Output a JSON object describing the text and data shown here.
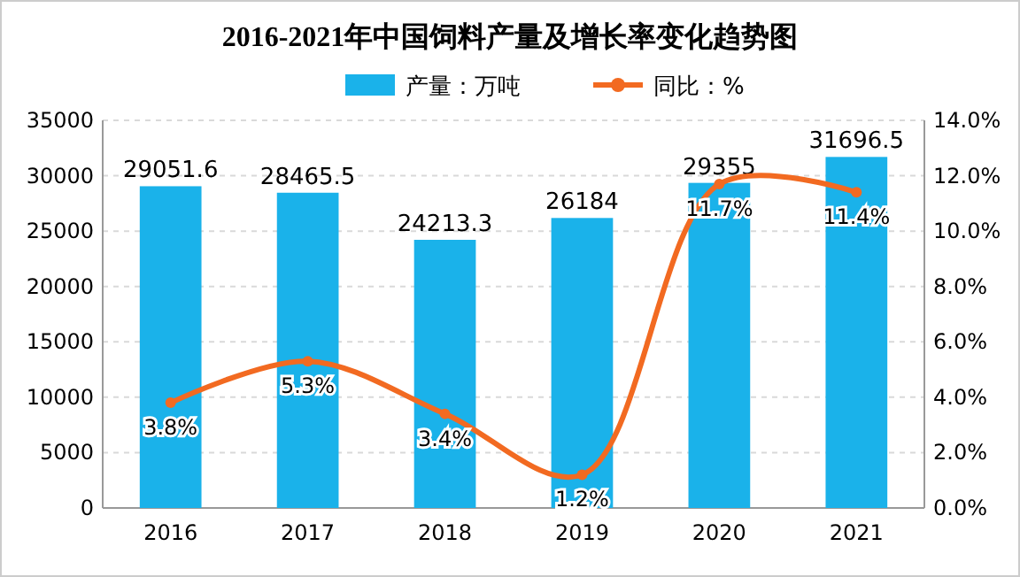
{
  "chart_data": {
    "type": "bar",
    "title": "2016-2021年中国饲料产量及增长率变化趋势图",
    "categories": [
      "2016",
      "2017",
      "2018",
      "2019",
      "2020",
      "2021"
    ],
    "series": [
      {
        "name": "产量：万吨",
        "color": "#1ab2ea",
        "values": [
          29051.6,
          28465.5,
          24213.3,
          26184,
          29355,
          31696.5
        ]
      },
      {
        "name": "同比：%",
        "type": "line",
        "axis": "y2",
        "color": "#f26a21",
        "marker": "circle",
        "values": [
          3.8,
          5.3,
          3.4,
          1.2,
          11.7,
          11.4
        ],
        "value_labels": [
          "3.8%",
          "5.3%",
          "3.4%",
          "1.2%",
          "11.7%",
          "11.4%"
        ]
      }
    ],
    "data_labels": true,
    "ylim": [
      0,
      35000
    ],
    "yticks": [
      0,
      5000,
      10000,
      15000,
      20000,
      25000,
      30000,
      35000
    ],
    "y2lim": [
      0,
      14
    ],
    "y2ticks": [
      {
        "value": 0,
        "label": "0.0%"
      },
      {
        "value": 2,
        "label": "2.0%"
      },
      {
        "value": 4,
        "label": "4.0%"
      },
      {
        "value": 6,
        "label": "6.0%"
      },
      {
        "value": 8,
        "label": "8.0%"
      },
      {
        "value": 10,
        "label": "10.0%"
      },
      {
        "value": 12,
        "label": "12.0%"
      },
      {
        "value": 14,
        "label": "14.0%"
      }
    ],
    "grid": "y",
    "legend": "top"
  }
}
